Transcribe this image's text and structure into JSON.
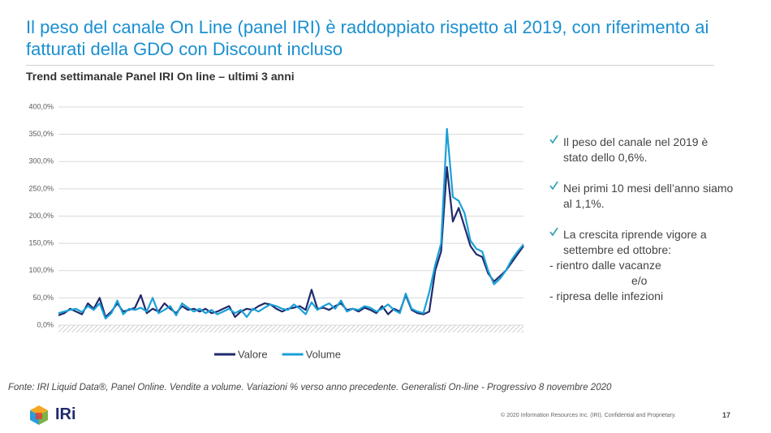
{
  "slide": {
    "title": "Il peso del canale On Line (panel IRI) è raddoppiato rispetto al 2019, con riferimento ai fatturati della GDO con Discount incluso",
    "bullets": [
      "Il peso del canale nel 2019 è stato dello 0,6%.",
      "Nei primi 10 mesi dell’anno siamo al 1,1%.",
      "La crescita riprende vigore a settembre ed ottobre:"
    ],
    "sub_lines": [
      "- rientro dalle vacanze",
      "e/o",
      "- ripresa delle infezioni"
    ],
    "source": "Fonte: IRI Liquid Data®, Panel Online. Vendite a volume. Variazioni % verso anno precedente. Generalisti On-line - Progressivo 8 novembre 2020",
    "logo": "IRi",
    "copyright": "© 2020 Information Resources Inc. (IRI). Confidential and Proprietary.",
    "page_number": "17"
  },
  "chart_data": {
    "type": "line",
    "title": "Trend settimanale Panel IRI On line – ultimi 3 anni",
    "categories": [
      null,
      null,
      null,
      null,
      null,
      null,
      null,
      null,
      null,
      null,
      null,
      null,
      null,
      null,
      null,
      null,
      null,
      null,
      null,
      null,
      null,
      null,
      null,
      null,
      null,
      null,
      null,
      null,
      null,
      null,
      null,
      null,
      null,
      null,
      null,
      null,
      null,
      null,
      null,
      null,
      null,
      null,
      null,
      null,
      null,
      null,
      null,
      null,
      null,
      null,
      null,
      null,
      null,
      null,
      null,
      null,
      null,
      null,
      null,
      null,
      null,
      null,
      null,
      null,
      null,
      null,
      null,
      null,
      null,
      null,
      null,
      null,
      null,
      null,
      null,
      null,
      null,
      null,
      null,
      null
    ],
    "series": [
      {
        "name": "Valore",
        "color": "#1f2a6b",
        "values": [
          18,
          22,
          30,
          25,
          20,
          40,
          30,
          50,
          15,
          25,
          40,
          25,
          28,
          32,
          55,
          22,
          30,
          25,
          40,
          30,
          22,
          35,
          28,
          30,
          25,
          30,
          22,
          25,
          30,
          35,
          15,
          25,
          30,
          28,
          35,
          40,
          38,
          30,
          25,
          30,
          32,
          35,
          28,
          65,
          30,
          32,
          28,
          35,
          40,
          28,
          30,
          25,
          32,
          28,
          22,
          35,
          20,
          30,
          25,
          55,
          28,
          22,
          20,
          25,
          100,
          135,
          290,
          190,
          215,
          180,
          145,
          130,
          125,
          95,
          80,
          90,
          100,
          115,
          130,
          145
        ]
      },
      {
        "name": "Volume",
        "color": "#1aa0d8",
        "values": [
          22,
          25,
          28,
          30,
          24,
          35,
          28,
          40,
          12,
          22,
          45,
          20,
          30,
          28,
          32,
          25,
          50,
          22,
          28,
          35,
          18,
          40,
          32,
          25,
          30,
          22,
          28,
          20,
          25,
          30,
          22,
          28,
          15,
          30,
          25,
          32,
          38,
          35,
          30,
          28,
          38,
          30,
          20,
          42,
          28,
          35,
          40,
          30,
          45,
          25,
          30,
          28,
          35,
          32,
          25,
          30,
          38,
          28,
          22,
          58,
          30,
          25,
          22,
          60,
          110,
          150,
          360,
          235,
          228,
          205,
          155,
          140,
          135,
          100,
          75,
          85,
          100,
          120,
          135,
          148
        ]
      }
    ],
    "ylim": [
      0,
      400
    ],
    "yticks": [
      {
        "value": 0,
        "label": "0,0%"
      },
      {
        "value": 50,
        "label": "50,0%"
      },
      {
        "value": 100,
        "label": "100,0%"
      },
      {
        "value": 150,
        "label": "150,0%"
      },
      {
        "value": 200,
        "label": "200,0%"
      },
      {
        "value": 250,
        "label": "250,0%"
      },
      {
        "value": 300,
        "label": "300,0%"
      },
      {
        "value": 350,
        "label": "350,0%"
      },
      {
        "value": 400,
        "label": "400,0%"
      }
    ],
    "grid": true,
    "legend": "bottom"
  }
}
